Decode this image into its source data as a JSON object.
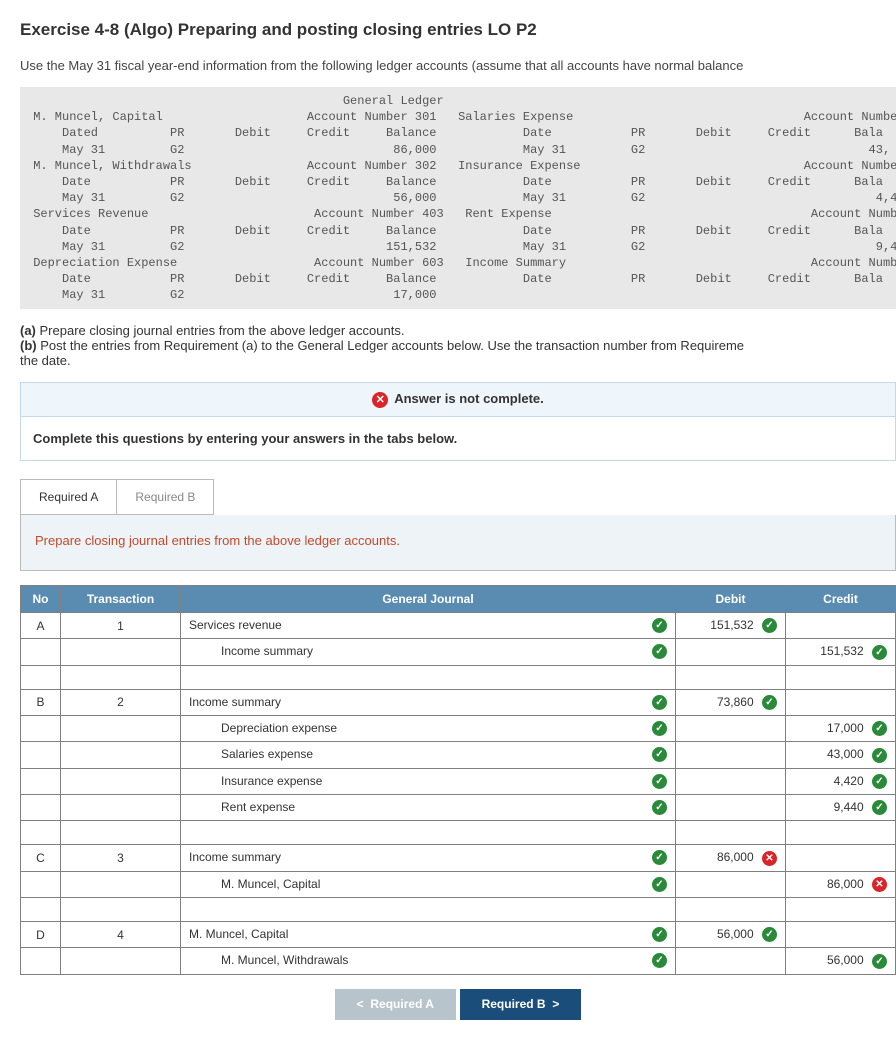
{
  "title": "Exercise 4-8 (Algo) Preparing and posting closing entries LO P2",
  "instructions": "Use the May 31 fiscal year-end information from the following ledger accounts (assume that all accounts have normal balance",
  "ledgerText": "                                            General Ledger\n M. Muncel, Capital                    Account Number 301   Salaries Expense                                Account Numbe\n     Dated          PR       Debit     Credit     Balance            Date           PR       Debit     Credit      Bala\n     May 31         G2                             86,000            May 31         G2                               43,\n M. Muncel, Withdrawals                Account Number 302   Insurance Expense                               Account Numbe\n     Date           PR       Debit     Credit     Balance            Date           PR       Debit     Credit      Bala\n     May 31         G2                             56,000            May 31         G2                                4,4\n Services Revenue                       Account Number 403   Rent Expense                                    Account Numbe\n     Date           PR       Debit     Credit     Balance            Date           PR       Debit     Credit      Bala\n     May 31         G2                            151,532            May 31         G2                                9,4\n Depreciation Expense                   Account Number 603   Income Summary                                  Account Numbe\n     Date           PR       Debit     Credit     Balance            Date           PR       Debit     Credit      Bala\n     May 31         G2                             17,000",
  "partA": "Prepare closing journal entries from the above ledger accounts.",
  "partB": "Post the entries from Requirement (a) to the General Ledger accounts below. Use the transaction number from Requireme",
  "partBTail": "the date.",
  "alertTitle": "Answer is not complete.",
  "alertSub": "Complete this questions by entering your answers in the tabs below.",
  "tabA": "Required A",
  "tabB": "Required B",
  "tabBody": "Prepare closing journal entries from the above ledger accounts.",
  "headers": {
    "no": "No",
    "trx": "Transaction",
    "gj": "General Journal",
    "debit": "Debit",
    "credit": "Credit"
  },
  "rows": [
    {
      "no": "A",
      "trx": "1",
      "acct": "Services revenue",
      "indent": false,
      "debit": "151,532",
      "credit": "",
      "dOk": true,
      "cOk": null
    },
    {
      "no": "",
      "trx": "",
      "acct": "Income summary",
      "indent": true,
      "debit": "",
      "credit": "151,532",
      "dOk": null,
      "cOk": true
    },
    {
      "spacer": true
    },
    {
      "no": "B",
      "trx": "2",
      "acct": "Income summary",
      "indent": false,
      "debit": "73,860",
      "credit": "",
      "dOk": true,
      "cOk": null
    },
    {
      "no": "",
      "trx": "",
      "acct": "Depreciation expense",
      "indent": true,
      "debit": "",
      "credit": "17,000",
      "dOk": null,
      "cOk": true
    },
    {
      "no": "",
      "trx": "",
      "acct": "Salaries expense",
      "indent": true,
      "debit": "",
      "credit": "43,000",
      "dOk": null,
      "cOk": true
    },
    {
      "no": "",
      "trx": "",
      "acct": "Insurance expense",
      "indent": true,
      "debit": "",
      "credit": "4,420",
      "dOk": null,
      "cOk": true
    },
    {
      "no": "",
      "trx": "",
      "acct": "Rent expense",
      "indent": true,
      "debit": "",
      "credit": "9,440",
      "dOk": null,
      "cOk": true
    },
    {
      "spacer": true
    },
    {
      "no": "C",
      "trx": "3",
      "acct": "Income summary",
      "indent": false,
      "debit": "86,000",
      "credit": "",
      "dOk": false,
      "cOk": null
    },
    {
      "no": "",
      "trx": "",
      "acct": "M. Muncel, Capital",
      "indent": true,
      "debit": "",
      "credit": "86,000",
      "dOk": null,
      "cOk": false
    },
    {
      "spacer": true
    },
    {
      "no": "D",
      "trx": "4",
      "acct": "M. Muncel, Capital",
      "indent": false,
      "debit": "56,000",
      "credit": "",
      "dOk": true,
      "cOk": null
    },
    {
      "no": "",
      "trx": "",
      "acct": "M. Muncel, Withdrawals",
      "indent": true,
      "debit": "",
      "credit": "56,000",
      "dOk": null,
      "cOk": true
    }
  ],
  "navPrev": "Required A",
  "navNext": "Required B",
  "colors": {
    "headerBg": "#5a8bb0",
    "okBg": "#2a8a3a",
    "wrongBg": "#d9252a",
    "tabBodyBg": "#eef3f7",
    "alertBg": "#eef5fb"
  }
}
